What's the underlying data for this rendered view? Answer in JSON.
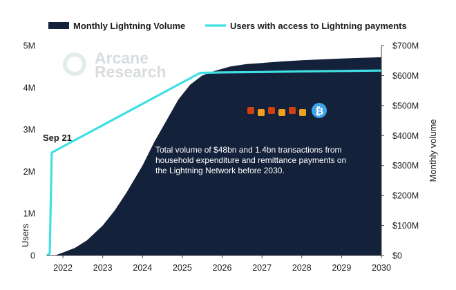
{
  "chart_data": {
    "type": "area",
    "legend": {
      "placement": "top",
      "items": [
        "Monthly Lightning Volume",
        "Users with access to Lightning payments"
      ]
    },
    "x_ticks": [
      "2022",
      "2023",
      "2024",
      "2025",
      "2026",
      "2027",
      "2028",
      "2029",
      "2030"
    ],
    "xlim": [
      2021.6,
      2030.0
    ],
    "y_left": {
      "label": "Users",
      "ticks": [
        "0",
        "1M",
        "2M",
        "3M",
        "4M",
        "5M"
      ],
      "ylim": [
        0,
        5000000
      ]
    },
    "y_right": {
      "label": "Monthly volume",
      "ticks": [
        "$0",
        "$100M",
        "$200M",
        "$300M",
        "$400M",
        "$500M",
        "$600M",
        "$700M"
      ],
      "ylim": [
        0,
        700000000
      ]
    },
    "series": [
      {
        "name": "Monthly Lightning Volume",
        "type": "area",
        "axis": "right",
        "color": "#14213a",
        "x": [
          2021.8,
          2022.0,
          2022.3,
          2022.6,
          2023.0,
          2023.3,
          2023.6,
          2024.0,
          2024.3,
          2024.6,
          2024.9,
          2025.2,
          2025.5,
          2025.8,
          2026.2,
          2026.6,
          2027.0,
          2027.5,
          2028.0,
          2028.5,
          2029.0,
          2029.5,
          2030.0
        ],
        "y": [
          0,
          10000000,
          25000000,
          50000000,
          100000000,
          150000000,
          210000000,
          300000000,
          380000000,
          450000000,
          520000000,
          570000000,
          600000000,
          615000000,
          630000000,
          638000000,
          642000000,
          647000000,
          651000000,
          654000000,
          657000000,
          659000000,
          661000000
        ]
      },
      {
        "name": "Users with access to Lightning payments",
        "type": "line",
        "axis": "left",
        "color": "#3fe0e4",
        "x": [
          2021.6,
          2021.67,
          2021.72,
          2025.45,
          2025.5,
          2026.0,
          2027.0,
          2028.0,
          2029.0,
          2030.0
        ],
        "y": [
          0,
          50000,
          2450000,
          4350000,
          4350000,
          4360000,
          4370000,
          4385000,
          4395000,
          4405000
        ]
      }
    ],
    "annotations": [
      {
        "text": "Sep 21",
        "x": 2021.7,
        "y_left": 2450000
      },
      {
        "text": "Total volume of $48bn and 1.4bn transactions from household expenditure and remittance payments on the Lightning Network before 2030."
      }
    ],
    "logo": "Arcane Research"
  }
}
